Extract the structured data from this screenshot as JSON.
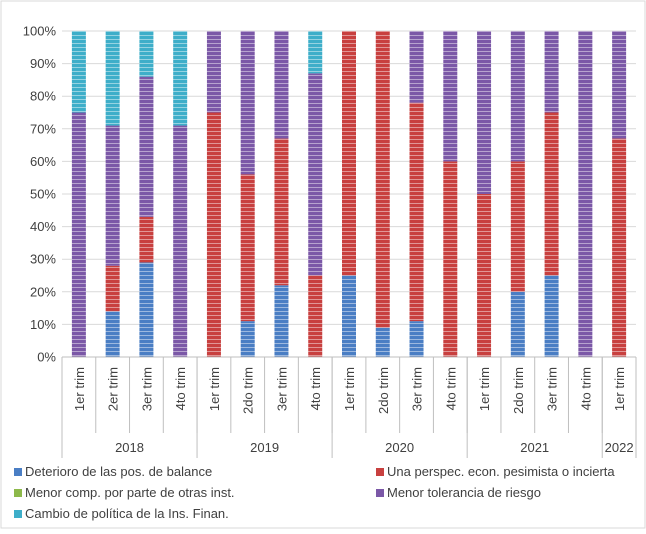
{
  "chart_data": {
    "type": "bar",
    "stacked": "percent",
    "title": "",
    "ylim": [
      0,
      100
    ],
    "y_ticks": [
      "0%",
      "10%",
      "20%",
      "30%",
      "40%",
      "50%",
      "60%",
      "70%",
      "80%",
      "90%",
      "100%"
    ],
    "grid": "horizontal",
    "legend_position": "bottom",
    "categories": [
      "1er trim",
      "2er trim",
      "3er trim",
      "4to trim",
      "1er trim",
      "2do trim",
      "3er trim",
      "4to trim",
      "1er trim",
      "2do trim",
      "3er trim",
      "4to trim",
      "1er trim",
      "2do trim",
      "3er trim",
      "4to trim",
      "1er trim"
    ],
    "groups": [
      {
        "label": "2018",
        "count": 4
      },
      {
        "label": "2019",
        "count": 4
      },
      {
        "label": "2020",
        "count": 4
      },
      {
        "label": "2021",
        "count": 4
      },
      {
        "label": "2022",
        "count": 1
      }
    ],
    "series": [
      {
        "name": "Deterioro de las pos. de balance",
        "color": "#4a7ec4",
        "values": [
          0,
          14,
          29,
          0,
          0,
          11,
          22,
          0,
          25,
          9,
          11,
          0,
          0,
          20,
          25,
          0,
          0
        ]
      },
      {
        "name": "Una perspec. econ. pesimista o  incierta",
        "color": "#c8403f",
        "values": [
          0,
          14,
          14,
          0,
          75,
          45,
          45,
          25,
          75,
          91,
          67,
          60,
          50,
          40,
          50,
          0,
          67
        ]
      },
      {
        "name": "Menor comp. por parte de otras inst.",
        "color": "#8db94a",
        "values": [
          0,
          0,
          0,
          0,
          0,
          0,
          0,
          0,
          0,
          0,
          0,
          0,
          0,
          0,
          0,
          0,
          0
        ]
      },
      {
        "name": "Menor tolerancia de riesgo",
        "color": "#7b58a7",
        "values": [
          75,
          43,
          43,
          71,
          25,
          44,
          33,
          62,
          0,
          0,
          22,
          40,
          50,
          40,
          25,
          100,
          33
        ]
      },
      {
        "name": "Cambio de política de la Ins. Finan.",
        "color": "#3eaec9",
        "values": [
          25,
          29,
          14,
          29,
          0,
          0,
          0,
          13,
          0,
          0,
          0,
          0,
          0,
          0,
          0,
          0,
          0
        ]
      }
    ]
  }
}
